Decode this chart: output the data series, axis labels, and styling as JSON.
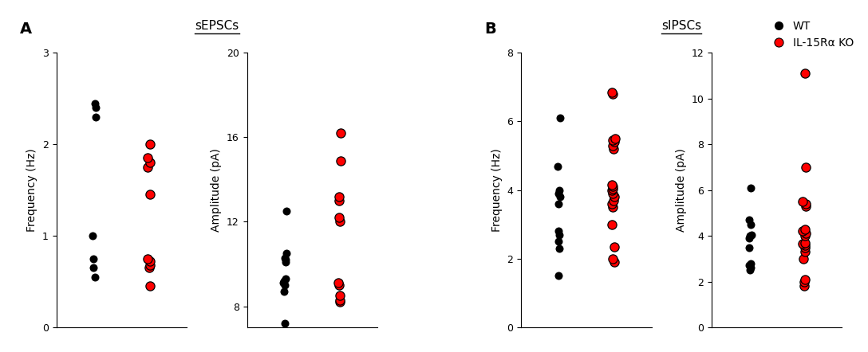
{
  "panel_A_title": "sEPSCs",
  "panel_B_title": "sIPSCs",
  "sEPSC_freq_WT": [
    0.55,
    0.65,
    0.75,
    1.0,
    2.3,
    2.4,
    2.45
  ],
  "sEPSC_freq_KO": [
    0.45,
    0.65,
    0.68,
    0.72,
    0.75,
    1.45,
    1.75,
    1.8,
    1.85,
    2.0
  ],
  "sEPSC_amp_WT": [
    7.2,
    8.7,
    9.0,
    9.1,
    9.2,
    9.3,
    10.1,
    10.2,
    10.3,
    10.5,
    12.5
  ],
  "sEPSC_amp_KO": [
    8.2,
    8.3,
    8.5,
    9.0,
    9.1,
    12.0,
    12.2,
    13.0,
    13.2,
    14.9,
    16.2
  ],
  "sIPSC_freq_WT": [
    1.5,
    2.3,
    2.5,
    2.7,
    2.8,
    3.6,
    3.8,
    3.9,
    4.0,
    4.7,
    6.1
  ],
  "sIPSC_freq_KO": [
    1.9,
    2.0,
    2.35,
    3.0,
    3.5,
    3.6,
    3.7,
    3.8,
    3.9,
    4.0,
    4.05,
    4.1,
    4.15,
    5.2,
    5.3,
    5.4,
    5.45,
    5.5,
    6.8,
    6.85
  ],
  "sIPSC_amp_WT": [
    2.5,
    2.6,
    2.7,
    2.8,
    3.5,
    3.9,
    4.0,
    4.05,
    4.5,
    4.7,
    6.1
  ],
  "sIPSC_amp_KO": [
    1.8,
    2.0,
    2.1,
    3.0,
    3.3,
    3.5,
    3.6,
    3.65,
    3.7,
    4.0,
    4.1,
    4.2,
    4.3,
    5.3,
    5.4,
    5.5,
    7.0,
    11.1
  ],
  "wt_color": "#000000",
  "ko_color": "#ff0000",
  "ko_edge_color": "#000000",
  "marker_size_wt": 52,
  "marker_size_ko": 65,
  "jitter": 0.03,
  "sEPSC_freq_ylim": [
    0,
    3
  ],
  "sEPSC_freq_yticks": [
    0,
    1,
    2,
    3
  ],
  "sEPSC_amp_ylim": [
    7,
    20
  ],
  "sEPSC_amp_yticks": [
    8,
    12,
    16,
    20
  ],
  "sIPSC_freq_ylim": [
    0,
    8
  ],
  "sIPSC_freq_yticks": [
    0,
    2,
    4,
    6,
    8
  ],
  "sIPSC_amp_ylim": [
    0,
    12
  ],
  "sIPSC_amp_yticks": [
    0,
    2,
    4,
    6,
    8,
    10,
    12
  ],
  "ylabel_freq": "Frequency (Hz)",
  "ylabel_amp": "Amplitude (pA)",
  "legend_wt": "WT",
  "legend_ko": "IL-15Rα KO",
  "label_A": "A",
  "label_B": "B"
}
